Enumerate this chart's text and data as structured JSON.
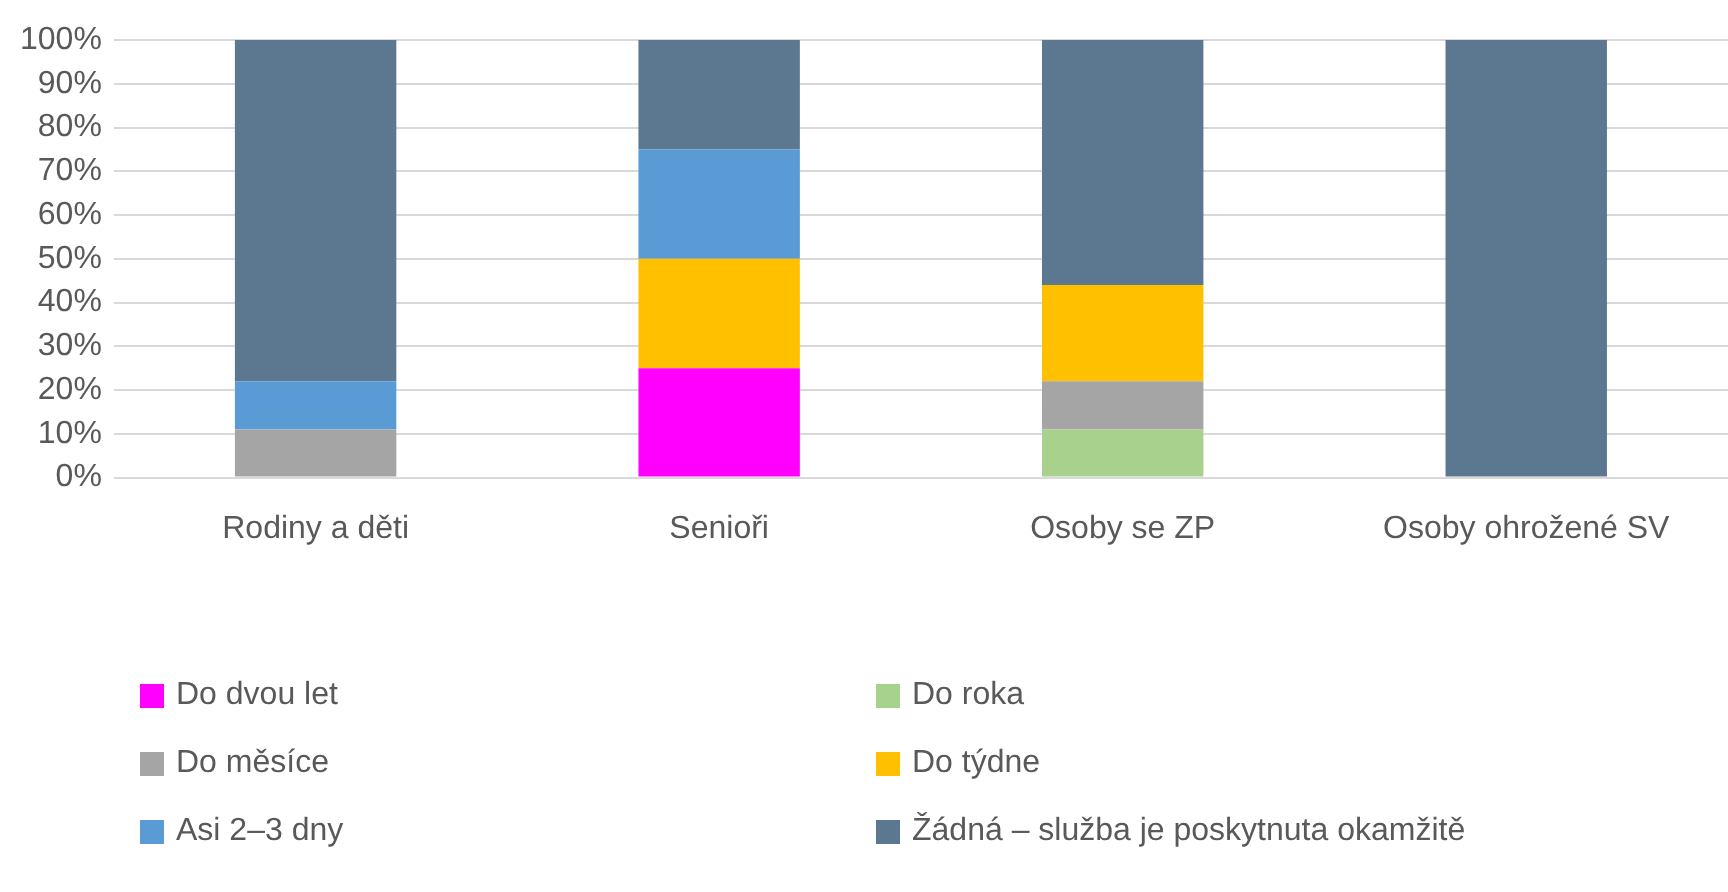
{
  "chart_data": {
    "type": "bar",
    "stacked": true,
    "categories": [
      "Rodiny a děti",
      "Senioři",
      "Osoby se ZP",
      "Osoby ohrožené SV"
    ],
    "series": [
      {
        "name": "Do dvou let",
        "color": "#ff00ff",
        "values": [
          0,
          25,
          0,
          0
        ]
      },
      {
        "name": "Do roka",
        "color": "#a9d18e",
        "values": [
          0,
          0,
          11,
          0
        ]
      },
      {
        "name": "Do měsíce",
        "color": "#a5a5a5",
        "values": [
          11,
          0,
          11,
          0
        ]
      },
      {
        "name": "Do týdne",
        "color": "#ffc000",
        "values": [
          0,
          25,
          22,
          0
        ]
      },
      {
        "name": "Asi 2–3 dny",
        "color": "#5b9bd5",
        "values": [
          11,
          25,
          0,
          0
        ]
      },
      {
        "name": "Žádná – služba je poskytnuta okamžitě",
        "color": "#5b7890",
        "values": [
          78,
          25,
          56,
          100
        ]
      }
    ],
    "ylim": [
      0,
      100
    ],
    "yticks": [
      {
        "value": 0,
        "label": "0%"
      },
      {
        "value": 10,
        "label": "10%"
      },
      {
        "value": 20,
        "label": "20%"
      },
      {
        "value": 30,
        "label": "30%"
      },
      {
        "value": 40,
        "label": "40%"
      },
      {
        "value": 50,
        "label": "50%"
      },
      {
        "value": 60,
        "label": "60%"
      },
      {
        "value": 70,
        "label": "70%"
      },
      {
        "value": 80,
        "label": "80%"
      },
      {
        "value": 90,
        "label": "90%"
      },
      {
        "value": 100,
        "label": "100%"
      }
    ],
    "grid": "y",
    "legend": "bottom"
  }
}
